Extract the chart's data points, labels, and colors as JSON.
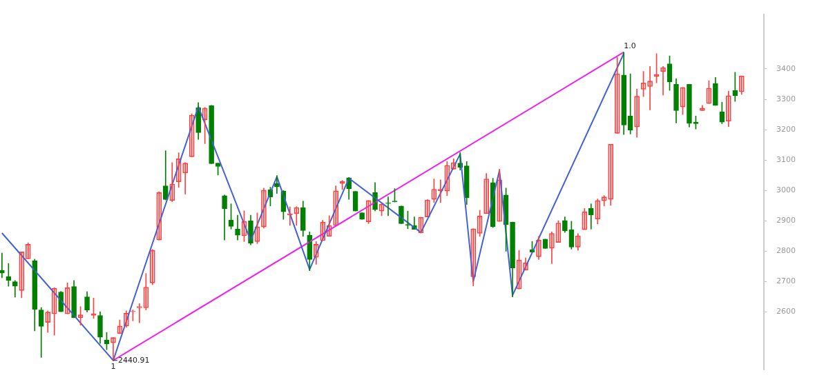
{
  "chart_data": {
    "type": "candlestick",
    "categories": [
      null,
      null,
      null,
      null,
      null,
      null,
      null,
      null,
      null,
      null,
      null,
      null,
      null,
      null,
      null,
      null,
      null,
      null,
      null,
      null,
      null,
      null,
      null,
      null,
      null,
      null,
      null,
      null,
      null,
      null,
      null,
      null,
      null,
      null,
      null,
      null,
      null,
      null,
      null,
      null,
      null,
      null,
      null,
      null,
      null,
      null,
      null,
      null,
      null,
      null,
      null,
      null,
      null,
      null,
      null,
      null,
      null,
      null,
      null,
      null,
      null,
      null,
      null,
      null,
      null,
      null,
      null,
      null,
      null,
      null,
      null,
      null,
      null,
      null,
      null,
      null,
      null,
      null,
      null,
      null,
      null,
      null,
      null,
      null,
      null,
      null,
      null,
      null,
      null,
      null,
      null,
      null,
      null,
      null,
      null,
      null,
      null,
      null,
      null,
      null,
      null,
      null,
      null,
      null,
      null,
      null,
      null,
      null,
      null,
      null,
      null,
      null,
      null,
      null
    ],
    "ohlc": [
      [
        2737,
        2794,
        2713,
        2728
      ],
      [
        2717,
        2760,
        2685,
        2704
      ],
      [
        2700,
        2704,
        2649,
        2685
      ],
      [
        2671,
        2798,
        2647,
        2798
      ],
      [
        2775,
        2828,
        2775,
        2823
      ],
      [
        2769,
        2774,
        2538,
        2609
      ],
      [
        2607,
        2615,
        2451,
        2553
      ],
      [
        2566,
        2604,
        2533,
        2600
      ],
      [
        2594,
        2680,
        2524,
        2678
      ],
      [
        2666,
        2668,
        2601,
        2601
      ],
      [
        2594,
        2696,
        2594,
        2680
      ],
      [
        2684,
        2704,
        2581,
        2581
      ],
      [
        2582,
        2618,
        2557,
        2591
      ],
      [
        2650,
        2667,
        2600,
        2607
      ],
      [
        2589,
        2646,
        2579,
        2594
      ],
      [
        2589,
        2601,
        2497,
        2517
      ],
      [
        2508,
        2533,
        2476,
        2495
      ],
      [
        2499,
        2516,
        2440.91,
        2516
      ],
      [
        2529,
        2574,
        2529,
        2554
      ],
      [
        2554,
        2604,
        2550,
        2596
      ],
      [
        2601,
        2607,
        2571,
        2603
      ],
      [
        2614,
        2628,
        2565,
        2618
      ],
      [
        2614,
        2727,
        2607,
        2682
      ],
      [
        2696,
        2806,
        2690,
        2803
      ],
      [
        2837,
        2996,
        2837,
        2993
      ],
      [
        3015,
        3131,
        2969,
        2970
      ],
      [
        2967,
        3092,
        2963,
        3021
      ],
      [
        3028,
        3124,
        3010,
        3104
      ],
      [
        3058,
        3092,
        2988,
        3090
      ],
      [
        3111,
        3252,
        3111,
        3248
      ],
      [
        3272,
        3289,
        3168,
        3190
      ],
      [
        3233,
        3273,
        3154,
        3271
      ],
      [
        3279,
        3280,
        3088,
        3088
      ],
      [
        3090,
        3090,
        3051,
        3079
      ],
      [
        2983,
        2985,
        2837,
        2940
      ],
      [
        2903,
        2956,
        2873,
        2882
      ],
      [
        2873,
        2919,
        2837,
        2853
      ],
      [
        2851,
        2933,
        2832,
        2898
      ],
      [
        2900,
        2919,
        2821,
        2827
      ],
      [
        2832,
        2926,
        2825,
        2880
      ],
      [
        2880,
        3008,
        2876,
        3001
      ],
      [
        3002,
        3011,
        2949,
        2978
      ],
      [
        3024,
        3049,
        2990,
        3012
      ],
      [
        2998,
        3000,
        2905,
        2930
      ],
      [
        2920,
        2946,
        2885,
        2924
      ],
      [
        2924,
        2947,
        2885,
        2944
      ],
      [
        2944,
        2965,
        2849,
        2868
      ],
      [
        2853,
        2864,
        2736,
        2773
      ],
      [
        2780,
        2832,
        2757,
        2823
      ],
      [
        2835,
        2902,
        2835,
        2896
      ],
      [
        2849,
        2917,
        2849,
        2885
      ],
      [
        2885,
        3015,
        2885,
        2999
      ],
      [
        3023,
        3033,
        3003,
        3030
      ],
      [
        3042,
        3043,
        2971,
        3006
      ],
      [
        2997,
        2997,
        2932,
        2932
      ],
      [
        2927,
        2927,
        2905,
        2905
      ],
      [
        2897,
        2967,
        2891,
        2967
      ],
      [
        2993,
        3026,
        2933,
        2937
      ],
      [
        2932,
        2956,
        2917,
        2955
      ],
      [
        2959,
        2979,
        2917,
        2957
      ],
      [
        2964,
        3006,
        2962,
        2963
      ],
      [
        2949,
        2949,
        2891,
        2891
      ],
      [
        2888,
        2932,
        2874,
        2885
      ],
      [
        2884,
        2913,
        2872,
        2872
      ],
      [
        2860,
        2912,
        2860,
        2912
      ],
      [
        2913,
        2970,
        2913,
        2969
      ],
      [
        2971,
        3038,
        2960,
        3004
      ],
      [
        2999,
        3035,
        2960,
        3004
      ],
      [
        2998,
        3095,
        2983,
        3083
      ],
      [
        3070,
        3104,
        3070,
        3092
      ],
      [
        3090,
        3125,
        3067,
        3076
      ],
      [
        3081,
        3095,
        2954,
        2976
      ],
      [
        2716,
        2874,
        2686,
        2874
      ],
      [
        2859,
        2935,
        2849,
        2916
      ],
      [
        2924,
        3056,
        2924,
        3038
      ],
      [
        3026,
        3040,
        2878,
        2881
      ],
      [
        2898,
        3070,
        2898,
        3035
      ],
      [
        2985,
        3008,
        2800,
        2888
      ],
      [
        2896,
        2896,
        2650,
        2745
      ],
      [
        2676,
        2803,
        2676,
        2771
      ],
      [
        2738,
        2778,
        2738,
        2762
      ],
      [
        2805,
        2832,
        2797,
        2797
      ],
      [
        2782,
        2849,
        2773,
        2837
      ],
      [
        2840,
        2840,
        2809,
        2809
      ],
      [
        2810,
        2864,
        2759,
        2859
      ],
      [
        2829,
        2901,
        2829,
        2893
      ],
      [
        2901,
        2913,
        2862,
        2867
      ],
      [
        2871,
        2899,
        2807,
        2814
      ],
      [
        2814,
        2858,
        2803,
        2851
      ],
      [
        2871,
        2941,
        2871,
        2930
      ],
      [
        2941,
        2956,
        2873,
        2919
      ],
      [
        2906,
        2972,
        2890,
        2967
      ],
      [
        2966,
        2983,
        2949,
        2979
      ],
      [
        2971,
        3152,
        2951,
        3152
      ],
      [
        3188,
        3438,
        3188,
        3384
      ],
      [
        3380,
        3455,
        3184,
        3215
      ],
      [
        3245,
        3384,
        3186,
        3199
      ],
      [
        3209,
        3334,
        3175,
        3310
      ],
      [
        3333,
        3392,
        3309,
        3354
      ],
      [
        3342,
        3408,
        3265,
        3360
      ],
      [
        3375,
        3450,
        3354,
        3382
      ],
      [
        3391,
        3408,
        3314,
        3404
      ],
      [
        3417,
        3443,
        3329,
        3357
      ],
      [
        3350,
        3368,
        3222,
        3263
      ],
      [
        3275,
        3339,
        3250,
        3339
      ],
      [
        3349,
        3349,
        3209,
        3221
      ],
      [
        3225,
        3245,
        3202,
        3220
      ],
      [
        3263,
        3280,
        3263,
        3271
      ],
      [
        3286,
        3361,
        3286,
        3337
      ],
      [
        3352,
        3372,
        3280,
        3280
      ],
      [
        3259,
        3291,
        3220,
        3225
      ],
      [
        3228,
        3327,
        3210,
        3312
      ],
      [
        3329,
        3389,
        3293,
        3312
      ],
      [
        3325,
        3377,
        3316,
        3377
      ]
    ],
    "colors": [
      "#008000",
      "#008000",
      "#008000",
      "#ff4040",
      "#ff4040",
      "#008000",
      "#008000",
      "#ff4040",
      "#ff4040",
      "#008000",
      "#ff4040",
      "#008000",
      "#ff4040",
      "#008000",
      "#ff4040",
      "#008000",
      "#008000",
      "#ff4040",
      "#ff4040",
      "#ff4040",
      "#ff4040",
      "#ff4040",
      "#ff4040",
      "#ff4040",
      "#ff4040",
      "#008000",
      "#ff4040",
      "#ff4040",
      "#ff4040",
      "#ff4040",
      "#008000",
      "#ff4040",
      "#008000",
      "#008000",
      "#008000",
      "#008000",
      "#008000",
      "#ff4040",
      "#008000",
      "#ff4040",
      "#ff4040",
      "#008000",
      "#008000",
      "#008000",
      "#ff4040",
      "#ff4040",
      "#008000",
      "#008000",
      "#ff4040",
      "#ff4040",
      "#ff4040",
      "#ff4040",
      "#ff4040",
      "#008000",
      "#008000",
      "#008000",
      "#ff4040",
      "#008000",
      "#ff4040",
      "#008000",
      "#008000",
      "#008000",
      "#008000",
      "#008000",
      "#ff4040",
      "#ff4040",
      "#ff4040",
      "#ff4040",
      "#ff4040",
      "#ff4040",
      "#008000",
      "#008000",
      "#ff4040",
      "#ff4040",
      "#ff4040",
      "#008000",
      "#ff4040",
      "#008000",
      "#008000",
      "#ff4040",
      "#ff4040",
      "#008000",
      "#ff4040",
      "#008000",
      "#ff4040",
      "#ff4040",
      "#008000",
      "#008000",
      "#ff4040",
      "#ff4040",
      "#008000",
      "#ff4040",
      "#ff4040",
      "#ff4040",
      "#ff4040",
      "#008000",
      "#008000",
      "#ff4040",
      "#ff4040",
      "#ff4040",
      "#ff4040",
      "#ff4040",
      "#008000",
      "#008000",
      "#ff4040",
      "#008000",
      "#008000",
      "#ff4040",
      "#ff4040",
      "#008000",
      "#008000",
      "#ff4040",
      "#008000",
      "#ff4040"
    ],
    "series": [
      {
        "type": "line",
        "color": "#4361d8",
        "values": [
          2860,
          null,
          null,
          null,
          null,
          null,
          null,
          null,
          null,
          null,
          null,
          null,
          null,
          null,
          null,
          null,
          null,
          2441,
          null,
          null,
          null,
          null,
          null,
          null,
          null,
          null,
          null,
          null,
          null,
          null,
          3276,
          null,
          null,
          null,
          null,
          null,
          null,
          null,
          2835,
          null,
          null,
          null,
          3045,
          null,
          null,
          null,
          null,
          2740,
          null,
          null,
          null,
          null,
          null,
          3040,
          null,
          null,
          null,
          null,
          null,
          null,
          null,
          null,
          null,
          null,
          2862,
          null,
          null,
          null,
          null,
          null,
          3120,
          null,
          2700,
          null,
          null,
          null,
          3066,
          null,
          2655,
          null,
          null,
          null,
          null,
          null,
          null,
          null,
          null,
          null,
          null,
          null,
          null,
          null,
          null,
          null,
          null,
          3451,
          null,
          null,
          null,
          null,
          null,
          null,
          null,
          null,
          null,
          null,
          null,
          null,
          null,
          null,
          null,
          null,
          null,
          null
        ]
      },
      {
        "type": "line",
        "color": "#f020f0",
        "values": [
          null,
          null,
          null,
          null,
          null,
          null,
          null,
          null,
          null,
          null,
          null,
          null,
          null,
          null,
          null,
          null,
          null,
          2441,
          null,
          null,
          null,
          null,
          null,
          null,
          null,
          null,
          null,
          null,
          null,
          null,
          null,
          null,
          null,
          null,
          null,
          null,
          null,
          null,
          null,
          null,
          null,
          null,
          null,
          null,
          null,
          null,
          null,
          null,
          null,
          null,
          null,
          null,
          null,
          null,
          null,
          null,
          null,
          null,
          null,
          null,
          null,
          null,
          null,
          null,
          null,
          null,
          null,
          null,
          null,
          null,
          null,
          null,
          null,
          null,
          null,
          null,
          null,
          null,
          null,
          null,
          null,
          null,
          null,
          null,
          null,
          null,
          null,
          null,
          null,
          null,
          null,
          null,
          null,
          null,
          null,
          3455,
          null,
          null,
          null,
          null,
          null,
          null,
          null,
          null,
          null,
          null,
          null,
          null,
          null,
          null,
          null,
          null,
          null,
          null
        ]
      }
    ],
    "ylim": [
      2410,
      3580
    ],
    "yticks": [
      2600,
      2700,
      2800,
      2900,
      3000,
      3100,
      3200,
      3300,
      3400
    ],
    "annotations": [
      "2440.91",
      "1",
      "1.0"
    ],
    "grid": false,
    "legend": false,
    "tick_labels": "y",
    "marker": "none",
    "line_style": "solid"
  }
}
